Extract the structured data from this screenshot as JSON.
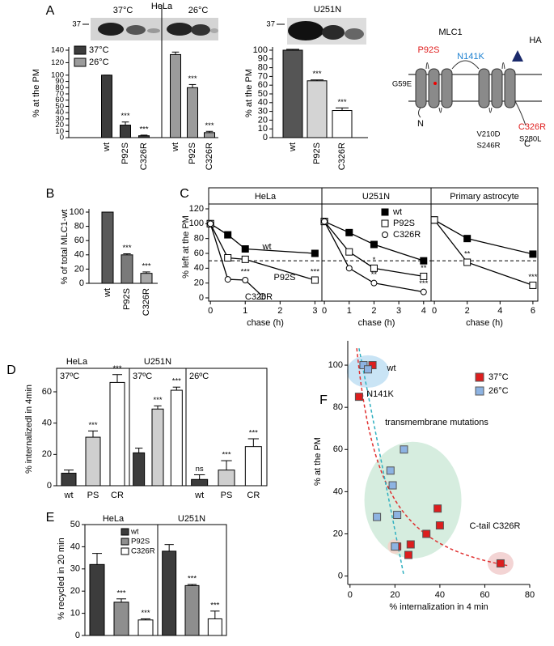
{
  "blots": {
    "hela": {
      "marker": "37",
      "left": "37°C",
      "center": "HeLa",
      "right": "26°C"
    },
    "u251n": {
      "title": "U251N",
      "marker": "37"
    }
  },
  "diagram": {
    "title": "MLC1",
    "tag": "HA",
    "labels": [
      "P92S",
      "N141K",
      "G59E",
      "C326R",
      "N",
      "C",
      "V210D",
      "S246R",
      "S280L"
    ]
  },
  "chart_data": [
    {
      "panel": "A",
      "type": "bar",
      "ylabel": "% at the PM",
      "categories": [
        "wt",
        "P92S",
        "C326R"
      ],
      "series": [
        {
          "name": "37°C",
          "color": "#3c3c3c",
          "values": [
            100,
            20,
            3
          ],
          "errors": [
            0,
            5,
            1
          ],
          "significance": [
            null,
            "***",
            "***"
          ]
        },
        {
          "name": "26°C",
          "color": "#9b9b9b",
          "values": [
            133,
            80,
            8
          ],
          "errors": [
            4,
            5,
            2
          ],
          "significance": [
            null,
            "***",
            "***"
          ]
        }
      ],
      "ylim": [
        0,
        140
      ],
      "yticks": [
        0,
        10,
        20,
        30,
        40,
        50,
        60,
        70,
        80,
        90,
        100,
        120,
        140
      ]
    },
    {
      "type": "bar",
      "ylabel": "% at the PM",
      "categories": [
        "wt",
        "P92S",
        "C326R"
      ],
      "values": [
        100,
        65,
        31
      ],
      "errors": [
        1,
        1,
        3
      ],
      "significance": [
        null,
        "***",
        "***"
      ],
      "colors": [
        "#555555",
        "#d4d4d4",
        "#ffffff"
      ],
      "ylim": [
        0,
        100
      ],
      "yticks": [
        0,
        10,
        20,
        30,
        40,
        50,
        60,
        70,
        80,
        90,
        100
      ]
    },
    {
      "panel": "B",
      "type": "bar",
      "ylabel": "% of total MLC1-wt",
      "categories": [
        "wt",
        "P92S",
        "C326R"
      ],
      "values": [
        100,
        40,
        14
      ],
      "errors": [
        0,
        1.5,
        2
      ],
      "significance": [
        null,
        "***",
        "***"
      ],
      "colors": [
        "#5a5a5a",
        "#7a7a7a",
        "#a8a8a8"
      ],
      "ylim": [
        0,
        100
      ],
      "yticks": [
        0,
        20,
        40,
        60,
        80,
        100
      ]
    },
    {
      "panel": "C",
      "type": "line",
      "title": "HeLa",
      "ylabel": "% left at the PM",
      "xlabel": "chase (h)",
      "xlim": [
        -0.05,
        3.2
      ],
      "xticks": [
        0,
        1,
        2,
        3
      ],
      "ylim": [
        0,
        120
      ],
      "yticks": [
        0,
        20,
        40,
        60,
        80,
        100,
        120
      ],
      "reference_line": 50,
      "series": [
        {
          "name": "wt",
          "marker": "filled-square",
          "x": [
            0,
            0.5,
            1,
            3
          ],
          "values": [
            100,
            85,
            66,
            60
          ]
        },
        {
          "name": "P92S",
          "marker": "open-square",
          "x": [
            0,
            0.5,
            1,
            3
          ],
          "values": [
            100,
            54,
            52,
            24
          ],
          "significance": [
            null,
            null,
            "*",
            "***"
          ]
        },
        {
          "name": "C326R",
          "marker": "open-circle",
          "x": [
            0,
            0.5,
            1,
            1.5
          ],
          "values": [
            100,
            25,
            24,
            2
          ],
          "significance": [
            null,
            null,
            "***",
            null
          ]
        }
      ]
    },
    {
      "type": "line",
      "title": "U251N",
      "xlabel": "chase (h)",
      "xlim": [
        -0.1,
        4.3
      ],
      "xticks": [
        0,
        1,
        2,
        3,
        4
      ],
      "ylim": [
        0,
        120
      ],
      "reference_line": 50,
      "series": [
        {
          "name": "wt",
          "marker": "filled-square",
          "x": [
            0,
            1,
            2,
            4
          ],
          "values": [
            103,
            88,
            72,
            50
          ]
        },
        {
          "name": "P92S",
          "marker": "open-square",
          "x": [
            0,
            1,
            2,
            4
          ],
          "values": [
            103,
            62,
            40,
            29
          ],
          "significance": [
            null,
            null,
            "*",
            "**"
          ]
        },
        {
          "name": "C326R",
          "marker": "open-circle",
          "x": [
            0,
            1,
            2,
            4
          ],
          "values": [
            103,
            40,
            20,
            8
          ],
          "significance": [
            null,
            null,
            "**",
            "***"
          ]
        }
      ]
    },
    {
      "type": "line",
      "title": "Primary astrocyte",
      "xlabel": "chase (h)",
      "xlim": [
        -0.2,
        6.3
      ],
      "xticks": [
        0,
        2,
        4,
        6
      ],
      "ylim": [
        0,
        120
      ],
      "reference_line": 50,
      "series": [
        {
          "marker": "filled-square",
          "x": [
            0,
            2,
            6
          ],
          "values": [
            105,
            80,
            59
          ]
        },
        {
          "marker": "open-square",
          "x": [
            0,
            2,
            6
          ],
          "values": [
            105,
            48,
            17
          ],
          "significance": [
            null,
            "**",
            "***"
          ]
        }
      ]
    },
    {
      "panel": "D",
      "type": "bar",
      "title": "HeLa",
      "subtitle": "37ºC",
      "ylabel": "% internalizedl in 4min",
      "categories": [
        "wt",
        "PS",
        "CR"
      ],
      "values": [
        8,
        31,
        66
      ],
      "errors": [
        2,
        4,
        5
      ],
      "significance": [
        null,
        "***",
        "***"
      ],
      "colors": [
        "#3c3c3c",
        "#cfcfcf",
        "#ffffff"
      ],
      "ylim": [
        0,
        75
      ],
      "yticks": [
        0,
        20,
        40,
        60
      ]
    },
    {
      "type": "bar",
      "title": "U251N",
      "subtitle": "37ºC",
      "values": [
        21,
        49,
        61
      ],
      "errors": [
        3,
        2,
        2
      ],
      "significance": [
        null,
        "***",
        "***"
      ],
      "colors": [
        "#3c3c3c",
        "#cfcfcf",
        "#ffffff"
      ],
      "ylim": [
        0,
        75
      ]
    },
    {
      "type": "bar",
      "subtitle": "26ºC",
      "categories": [
        "wt",
        "PS",
        "CR"
      ],
      "values": [
        4,
        10,
        25
      ],
      "errors": [
        3,
        6,
        5
      ],
      "significance": [
        "ns",
        "***",
        "***"
      ],
      "colors": [
        "#3c3c3c",
        "#cfcfcf",
        "#ffffff"
      ],
      "ylim": [
        0,
        75
      ]
    },
    {
      "panel": "E",
      "type": "bar",
      "title": "HeLa",
      "ylabel": "% recycled in 20 min",
      "categories": [
        "wt",
        "P92S",
        "C326R"
      ],
      "values": [
        32,
        15,
        7
      ],
      "errors": [
        5,
        1.5,
        0.5
      ],
      "significance": [
        null,
        "***",
        "***"
      ],
      "colors": [
        "#3c3c3c",
        "#8e8e8e",
        "#ffffff"
      ],
      "ylim": [
        0,
        50
      ],
      "yticks": [
        0,
        10,
        20,
        30,
        40,
        50
      ]
    },
    {
      "type": "bar",
      "title": "U251N",
      "values": [
        38,
        22.5,
        7.5
      ],
      "errors": [
        3,
        0.5,
        3.5
      ],
      "significance": [
        null,
        "***",
        "***"
      ],
      "colors": [
        "#3c3c3c",
        "#8e8e8e",
        "#ffffff"
      ],
      "ylim": [
        0,
        50
      ]
    },
    {
      "panel": "F",
      "type": "scatter",
      "xlabel": "% internalization in 4 min",
      "ylabel": "% at the PM",
      "xlim": [
        -1,
        80
      ],
      "xticks": [
        0,
        20,
        40,
        60,
        80
      ],
      "ylim": [
        -4,
        110
      ],
      "yticks": [
        0,
        20,
        40,
        60,
        80,
        100
      ],
      "series": [
        {
          "name": "37°C",
          "color": "#dd1e1e",
          "x": [
            10,
            4,
            39,
            40,
            34,
            27,
            26,
            21,
            67
          ],
          "values": [
            100,
            85,
            32,
            24,
            20,
            15,
            10,
            14,
            6
          ]
        },
        {
          "name": "26°C",
          "color": "#8db3e2",
          "x": [
            6,
            8,
            24,
            18,
            19,
            21,
            12,
            20
          ],
          "values": [
            100,
            98,
            60,
            50,
            43,
            29,
            28,
            14
          ]
        }
      ],
      "annotations": [
        "wt",
        "N141K",
        "transmembrane mutations",
        "C-tail C326R"
      ]
    }
  ]
}
